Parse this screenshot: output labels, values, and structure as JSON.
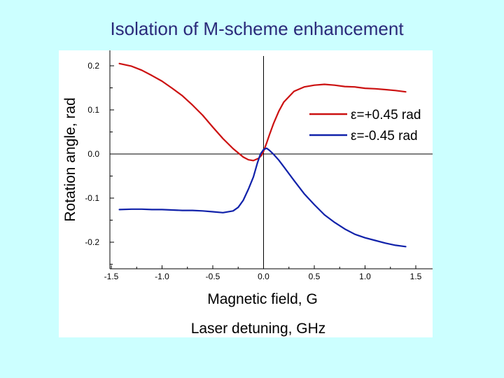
{
  "slide": {
    "title": "Isolation of M-scheme enhancement"
  },
  "colors": {
    "background": "#ccffff",
    "title": "#2a2a7a",
    "series_pos": "#cc1111",
    "series_neg": "#1122aa"
  },
  "chart_data": {
    "type": "line",
    "title": "",
    "xlabel": "Magnetic field, G",
    "xlabel_secondary": "Laser detuning, GHz",
    "ylabel": "Rotation angle, rad",
    "xlim": [
      -1.5,
      1.5
    ],
    "ylim": [
      -0.25,
      0.23
    ],
    "xticks": [
      "-1.5",
      "-1.0",
      "-0.5",
      "0.0",
      "0.5",
      "1.0",
      "1.5"
    ],
    "yticks": [
      "0.2",
      "0.1",
      "0.0",
      "-0.1",
      "-0.2"
    ],
    "grid": false,
    "legend_position": "top-right",
    "series": [
      {
        "name": "ε=+0.45 rad",
        "color": "#cc1111",
        "x": [
          -1.42,
          -1.3,
          -1.2,
          -1.1,
          -1.0,
          -0.9,
          -0.8,
          -0.7,
          -0.6,
          -0.5,
          -0.4,
          -0.3,
          -0.2,
          -0.15,
          -0.1,
          -0.05,
          -0.02,
          0.0,
          0.03,
          0.06,
          0.1,
          0.15,
          0.2,
          0.3,
          0.4,
          0.5,
          0.6,
          0.7,
          0.8,
          0.9,
          1.0,
          1.1,
          1.2,
          1.3,
          1.4
        ],
        "y": [
          0.205,
          0.199,
          0.19,
          0.178,
          0.165,
          0.149,
          0.132,
          0.111,
          0.088,
          0.061,
          0.035,
          0.012,
          -0.007,
          -0.013,
          -0.015,
          -0.01,
          -0.003,
          0.006,
          0.025,
          0.045,
          0.07,
          0.097,
          0.118,
          0.142,
          0.152,
          0.156,
          0.158,
          0.156,
          0.153,
          0.152,
          0.149,
          0.148,
          0.146,
          0.144,
          0.141
        ]
      },
      {
        "name": "ε=-0.45 rad",
        "color": "#1122aa",
        "x": [
          -1.42,
          -1.3,
          -1.2,
          -1.1,
          -1.0,
          -0.9,
          -0.8,
          -0.7,
          -0.6,
          -0.5,
          -0.4,
          -0.3,
          -0.25,
          -0.2,
          -0.15,
          -0.1,
          -0.06,
          -0.03,
          0.0,
          0.03,
          0.06,
          0.1,
          0.15,
          0.2,
          0.3,
          0.4,
          0.5,
          0.6,
          0.7,
          0.8,
          0.9,
          1.0,
          1.1,
          1.2,
          1.3,
          1.4
        ],
        "y": [
          -0.126,
          -0.125,
          -0.125,
          -0.126,
          -0.126,
          -0.127,
          -0.128,
          -0.128,
          -0.129,
          -0.131,
          -0.133,
          -0.129,
          -0.121,
          -0.105,
          -0.08,
          -0.052,
          -0.02,
          0.0,
          0.01,
          0.013,
          0.008,
          -0.001,
          -0.014,
          -0.029,
          -0.06,
          -0.09,
          -0.115,
          -0.138,
          -0.155,
          -0.17,
          -0.182,
          -0.19,
          -0.196,
          -0.202,
          -0.207,
          -0.21
        ]
      }
    ]
  }
}
